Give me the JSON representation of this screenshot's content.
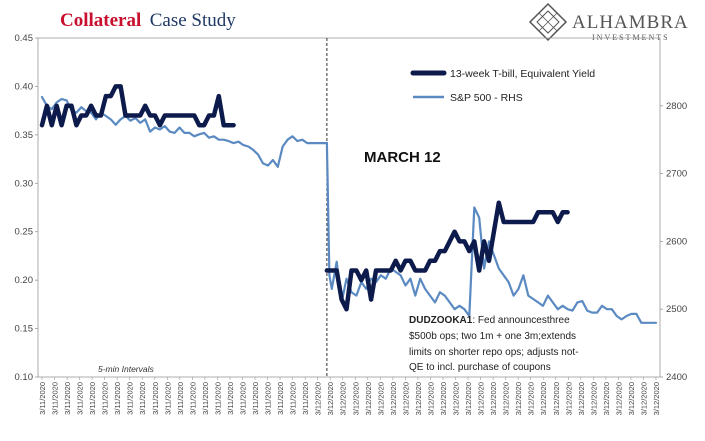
{
  "chart_data": {
    "type": "line",
    "title_part1": "Collateral",
    "title_part2": "Case Study",
    "annotation_date": "MARCH 12",
    "annotation_note_bold": "DUDZOOKA1",
    "annotation_note_lines": [
      ": Fed announcesthree",
      "$500b ops; two 1m + one 3m;extends",
      "limits on shorter repo ops; adjusts not-",
      "QE to incl. purchase of coupons"
    ],
    "interval_note": "5-min Intervals",
    "left_axis": {
      "min": 0.1,
      "max": 0.45,
      "ticks": [
        "0.10",
        "0.15",
        "0.20",
        "0.25",
        "0.30",
        "0.35",
        "0.40",
        "0.45"
      ]
    },
    "right_axis": {
      "min": 2400,
      "max": 2900,
      "ticks": [
        "2400",
        "2500",
        "2600",
        "2700",
        "2800"
      ]
    },
    "x_tick_label": "3/11/2020",
    "x_tick_label_day2": "3/12/2020",
    "divider_index": 43,
    "series": [
      {
        "name": "13-week T-bill, Equivalent Yield",
        "color": "#0d1b4c",
        "axis": "left",
        "segments": [
          [
            [
              0,
              0.36
            ],
            [
              1,
              0.38
            ],
            [
              2,
              0.36
            ],
            [
              3,
              0.38
            ],
            [
              4,
              0.36
            ],
            [
              5,
              0.38
            ],
            [
              6,
              0.38
            ],
            [
              7,
              0.36
            ],
            [
              8,
              0.37
            ],
            [
              9,
              0.37
            ],
            [
              10,
              0.38
            ],
            [
              11,
              0.37
            ],
            [
              12,
              0.37
            ],
            [
              13,
              0.39
            ],
            [
              14,
              0.39
            ],
            [
              15,
              0.4
            ],
            [
              16,
              0.4
            ],
            [
              17,
              0.37
            ],
            [
              18,
              0.37
            ],
            [
              19,
              0.37
            ],
            [
              20,
              0.37
            ],
            [
              21,
              0.38
            ],
            [
              22,
              0.37
            ],
            [
              23,
              0.37
            ],
            [
              24,
              0.36
            ],
            [
              25,
              0.37
            ],
            [
              26,
              0.37
            ],
            [
              27,
              0.37
            ],
            [
              28,
              0.37
            ],
            [
              29,
              0.37
            ],
            [
              30,
              0.37
            ],
            [
              31,
              0.37
            ],
            [
              32,
              0.36
            ],
            [
              33,
              0.36
            ],
            [
              34,
              0.37
            ],
            [
              35,
              0.37
            ],
            [
              36,
              0.39
            ],
            [
              37,
              0.36
            ],
            [
              38,
              0.36
            ],
            [
              39,
              0.36
            ]
          ],
          [
            [
              43.5,
              0.21
            ],
            [
              44.5,
              0.21
            ],
            [
              45.5,
              0.21
            ],
            [
              46.5,
              0.18
            ],
            [
              47.5,
              0.17
            ],
            [
              48.5,
              0.21
            ],
            [
              49.5,
              0.21
            ],
            [
              50.5,
              0.2
            ],
            [
              51.5,
              0.21
            ],
            [
              52.5,
              0.18
            ],
            [
              53.5,
              0.21
            ],
            [
              54.5,
              0.21
            ],
            [
              55.5,
              0.21
            ],
            [
              56.5,
              0.21
            ],
            [
              57.5,
              0.22
            ],
            [
              58.5,
              0.21
            ],
            [
              59.5,
              0.22
            ],
            [
              60.5,
              0.22
            ],
            [
              61.5,
              0.21
            ],
            [
              62.5,
              0.21
            ],
            [
              63.5,
              0.21
            ],
            [
              64.5,
              0.22
            ],
            [
              65.5,
              0.22
            ],
            [
              66.5,
              0.23
            ],
            [
              67.5,
              0.23
            ],
            [
              68.5,
              0.24
            ],
            [
              69.5,
              0.25
            ],
            [
              70.5,
              0.24
            ],
            [
              71.5,
              0.24
            ],
            [
              72.5,
              0.23
            ],
            [
              73.5,
              0.24
            ],
            [
              74.5,
              0.21
            ],
            [
              75.5,
              0.24
            ],
            [
              76.5,
              0.22
            ],
            [
              77.5,
              0.25
            ],
            [
              78.5,
              0.28
            ],
            [
              79.5,
              0.26
            ],
            [
              80.5,
              0.26
            ],
            [
              81.5,
              0.26
            ],
            [
              82.5,
              0.26
            ],
            [
              83.5,
              0.26
            ],
            [
              84.5,
              0.26
            ],
            [
              85.5,
              0.26
            ],
            [
              86.5,
              0.27
            ],
            [
              87.5,
              0.27
            ],
            [
              88.5,
              0.27
            ],
            [
              89.5,
              0.27
            ],
            [
              90.5,
              0.26
            ],
            [
              91.5,
              0.27
            ],
            [
              92.5,
              0.27
            ]
          ]
        ]
      },
      {
        "name": "S&P 500 - RHS",
        "color": "#5b8ac2",
        "axis": "right",
        "segments": [
          [
            [
              0,
              2813
            ],
            [
              1,
              2800
            ],
            [
              2,
              2795
            ],
            [
              3,
              2805
            ],
            [
              4,
              2810
            ],
            [
              5,
              2808
            ],
            [
              6,
              2793
            ],
            [
              7,
              2790
            ],
            [
              8,
              2798
            ],
            [
              9,
              2792
            ],
            [
              10,
              2790
            ],
            [
              11,
              2780
            ],
            [
              12,
              2790
            ],
            [
              13,
              2785
            ],
            [
              14,
              2780
            ],
            [
              15,
              2772
            ],
            [
              16,
              2780
            ],
            [
              17,
              2785
            ],
            [
              18,
              2778
            ],
            [
              19,
              2782
            ],
            [
              20,
              2775
            ],
            [
              21,
              2780
            ],
            [
              22,
              2762
            ],
            [
              23,
              2768
            ],
            [
              24,
              2765
            ],
            [
              25,
              2770
            ],
            [
              26,
              2762
            ],
            [
              27,
              2760
            ],
            [
              28,
              2768
            ],
            [
              29,
              2760
            ],
            [
              30,
              2760
            ],
            [
              31,
              2755
            ],
            [
              32,
              2758
            ],
            [
              33,
              2760
            ],
            [
              34,
              2753
            ],
            [
              35,
              2755
            ],
            [
              36,
              2750
            ],
            [
              37,
              2750
            ],
            [
              38,
              2748
            ],
            [
              39,
              2745
            ],
            [
              40,
              2747
            ],
            [
              41,
              2742
            ],
            [
              42,
              2740
            ],
            [
              43,
              2735
            ],
            [
              44,
              2728
            ],
            [
              45,
              2715
            ],
            [
              46,
              2712
            ],
            [
              47,
              2720
            ],
            [
              48,
              2710
            ],
            [
              49,
              2740
            ],
            [
              50,
              2750
            ],
            [
              51,
              2755
            ],
            [
              52,
              2748
            ],
            [
              53,
              2750
            ],
            [
              54,
              2745
            ],
            [
              55,
              2745
            ],
            [
              56,
              2745
            ],
            [
              57,
              2745
            ],
            [
              58,
              2745
            ]
          ],
          [
            [
              58,
              2745
            ],
            [
              58.5,
              2550
            ],
            [
              59,
              2530
            ],
            [
              60,
              2570
            ],
            [
              61,
              2510
            ],
            [
              62,
              2545
            ],
            [
              63,
              2525
            ],
            [
              64,
              2520
            ],
            [
              65,
              2540
            ],
            [
              66,
              2530
            ],
            [
              67,
              2545
            ],
            [
              68,
              2540
            ],
            [
              69,
              2550
            ],
            [
              70,
              2545
            ],
            [
              71,
              2560
            ],
            [
              72,
              2555
            ],
            [
              73,
              2550
            ],
            [
              74,
              2535
            ],
            [
              75,
              2545
            ],
            [
              76,
              2520
            ],
            [
              77,
              2545
            ],
            [
              78,
              2530
            ],
            [
              79,
              2520
            ],
            [
              80,
              2510
            ],
            [
              81,
              2525
            ],
            [
              82,
              2520
            ],
            [
              83,
              2510
            ],
            [
              84,
              2500
            ],
            [
              85,
              2505
            ],
            [
              86,
              2500
            ],
            [
              87,
              2490
            ],
            [
              88,
              2650
            ],
            [
              89,
              2635
            ],
            [
              90,
              2560
            ],
            [
              91,
              2600
            ],
            [
              92,
              2580
            ],
            [
              93,
              2560
            ],
            [
              94,
              2550
            ],
            [
              95,
              2540
            ],
            [
              96,
              2520
            ],
            [
              97,
              2530
            ],
            [
              98,
              2550
            ],
            [
              99,
              2520
            ],
            [
              100,
              2515
            ],
            [
              101,
              2510
            ],
            [
              102,
              2505
            ],
            [
              103,
              2520
            ],
            [
              104,
              2510
            ],
            [
              105,
              2500
            ],
            [
              106,
              2505
            ],
            [
              107,
              2500
            ],
            [
              108,
              2498
            ],
            [
              109,
              2510
            ],
            [
              110,
              2512
            ],
            [
              111,
              2498
            ],
            [
              112,
              2495
            ],
            [
              113,
              2495
            ],
            [
              114,
              2505
            ],
            [
              115,
              2500
            ],
            [
              116,
              2500
            ],
            [
              117,
              2490
            ],
            [
              118,
              2485
            ],
            [
              119,
              2490
            ],
            [
              120,
              2493
            ],
            [
              121,
              2493
            ],
            [
              122,
              2480
            ],
            [
              123,
              2480
            ],
            [
              124,
              2480
            ],
            [
              125,
              2480
            ]
          ]
        ]
      }
    ]
  },
  "logo": {
    "name": "ALHAMBRA",
    "sub": "INVESTMENTS"
  }
}
